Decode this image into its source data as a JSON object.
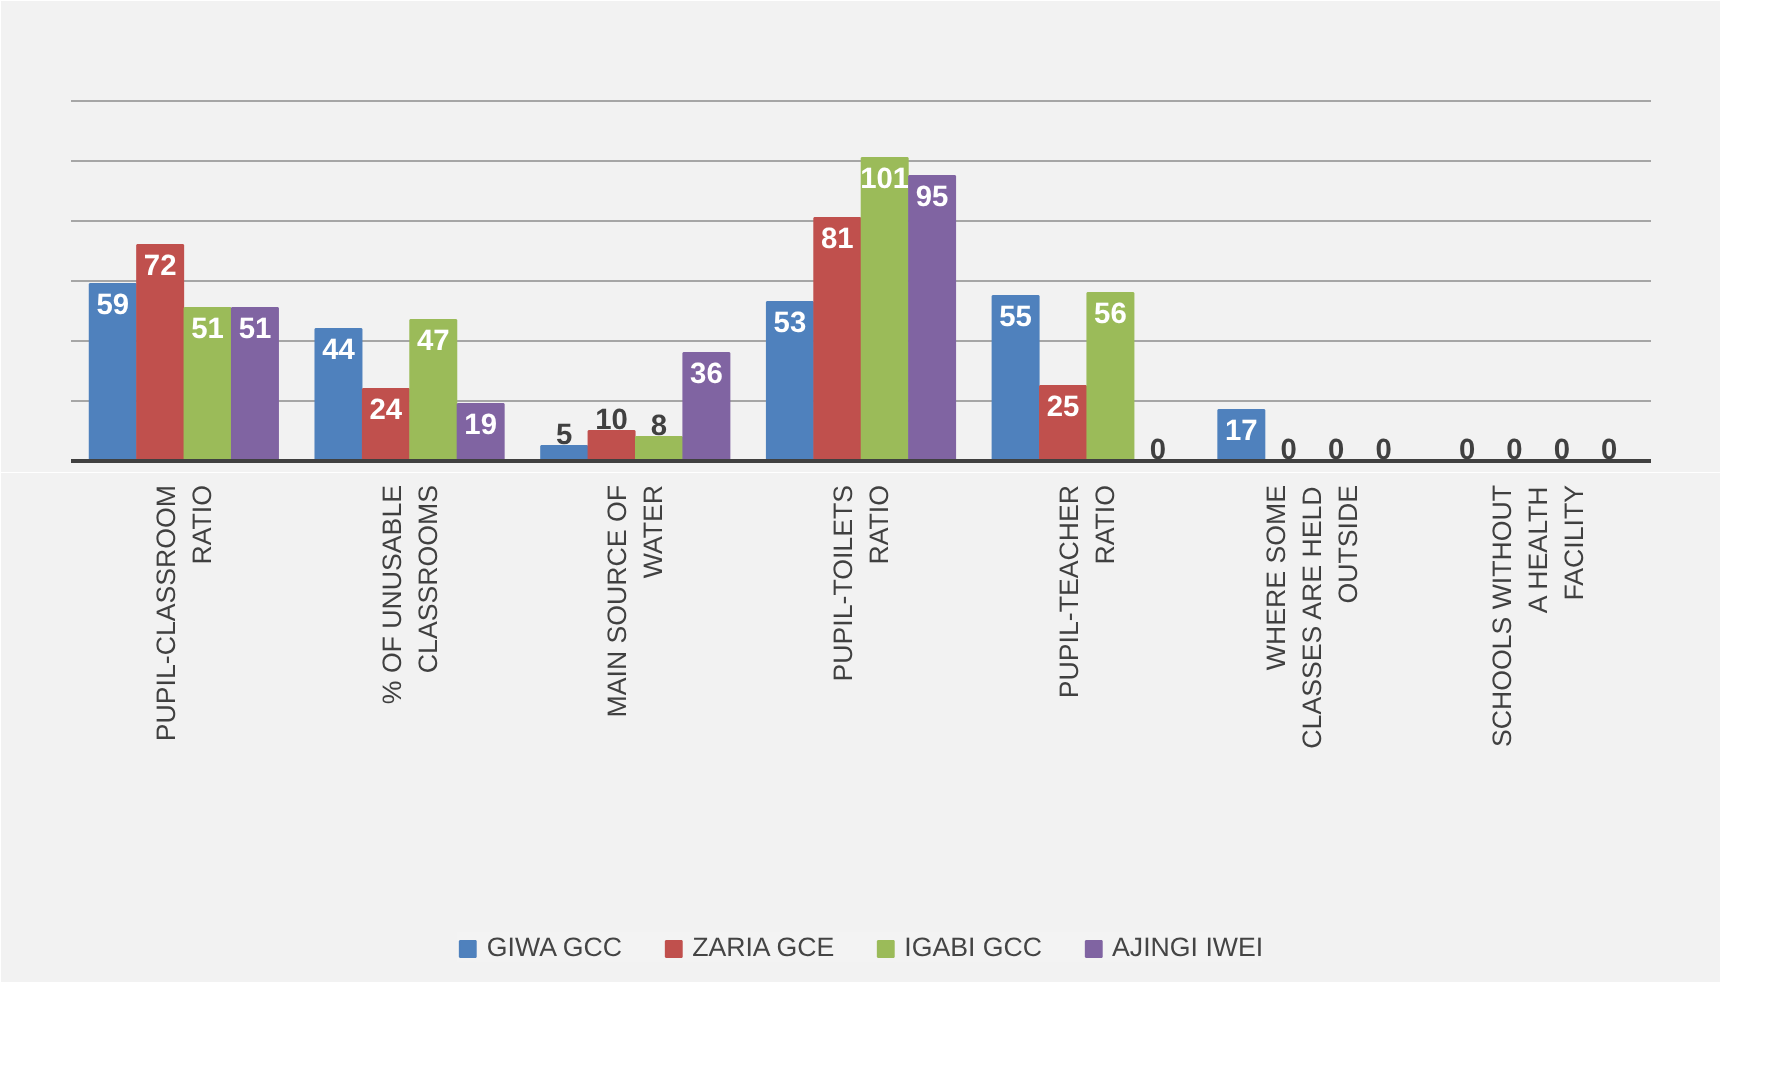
{
  "chart_data": {
    "type": "bar",
    "categories": [
      "PUPIL-CLASSROOM RATIO",
      "% OF UNUSABLE CLASSROOMS",
      "MAIN SOURCE OF WATER",
      "PUPIL-TOILETS RATIO",
      "PUPIL-TEACHER RATIO",
      "WHERE SOME CLASSES ARE HELD OUTSIDE",
      "SCHOOLS WITHOUT A HEALTH FACILITY"
    ],
    "series": [
      {
        "name": "GIWA GCC",
        "color": "#4f81bd",
        "values": [
          59,
          44,
          5,
          53,
          55,
          17,
          0
        ]
      },
      {
        "name": "ZARIA GCE",
        "color": "#c0504d",
        "values": [
          72,
          24,
          10,
          81,
          25,
          0,
          0
        ]
      },
      {
        "name": "IGABI GCC",
        "color": "#9bbb59",
        "values": [
          51,
          47,
          8,
          101,
          56,
          0,
          0
        ]
      },
      {
        "name": "AJINGI IWEI",
        "color": "#8064a2",
        "values": [
          51,
          19,
          36,
          95,
          0,
          0,
          0
        ]
      }
    ],
    "ylim": [
      0,
      140
    ],
    "yticks": [
      {
        "value": 0,
        "label": null
      },
      {
        "value": 20,
        "label": null
      },
      {
        "value": 40,
        "label": null
      },
      {
        "value": 60,
        "label": null
      },
      {
        "value": 80,
        "label": null
      },
      {
        "value": 100,
        "label": null
      },
      {
        "value": 120,
        "label": null
      },
      {
        "value": 140,
        "label": null
      }
    ],
    "tick_labels": "x",
    "grid": "y",
    "legend": "bottom",
    "data_labels": true
  }
}
